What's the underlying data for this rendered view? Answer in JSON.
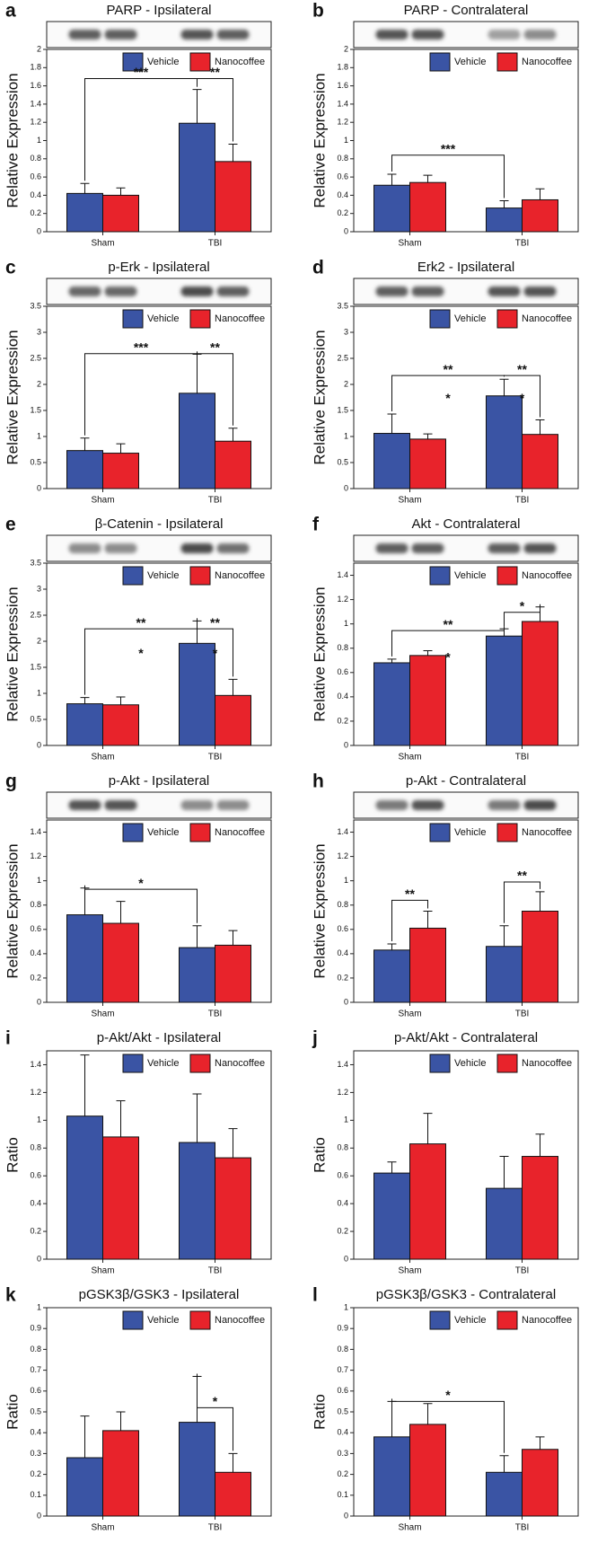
{
  "chart_data": [
    {
      "type": "bar",
      "panel": "a",
      "title": "PARP - Ipsilateral",
      "ylabel": "Relative Expression",
      "categories": [
        "Sham",
        "TBI"
      ],
      "series": [
        {
          "name": "Vehicle",
          "color": "#3a54a4",
          "values": [
            0.42,
            1.19
          ],
          "errors": [
            0.11,
            0.37
          ]
        },
        {
          "name": "Nanocoffee",
          "color": "#e8232b",
          "values": [
            0.4,
            0.77
          ],
          "errors": [
            0.08,
            0.19
          ]
        }
      ],
      "ylim": [
        0,
        2
      ],
      "yticks": [
        0,
        0.2,
        0.4,
        0.6,
        0.8,
        1,
        1.2,
        1.4,
        1.6,
        1.8,
        2
      ],
      "annotations": [
        "***",
        "**"
      ]
    },
    {
      "type": "bar",
      "panel": "b",
      "title": "PARP - Contralateral",
      "ylabel": "Relative Expression",
      "categories": [
        "Sham",
        "TBI"
      ],
      "series": [
        {
          "name": "Vehicle",
          "color": "#3a54a4",
          "values": [
            0.51,
            0.26
          ],
          "errors": [
            0.12,
            0.08
          ]
        },
        {
          "name": "Nanocoffee",
          "color": "#e8232b",
          "values": [
            0.54,
            0.35
          ],
          "errors": [
            0.08,
            0.12
          ]
        }
      ],
      "ylim": [
        0,
        2
      ],
      "yticks": [
        0,
        0.2,
        0.4,
        0.6,
        0.8,
        1,
        1.2,
        1.4,
        1.6,
        1.8,
        2
      ],
      "annotations": [
        "***"
      ]
    },
    {
      "type": "bar",
      "panel": "c",
      "title": "p-Erk - Ipsilateral",
      "ylabel": "Relative Expression",
      "categories": [
        "Sham",
        "TBI"
      ],
      "series": [
        {
          "name": "Vehicle",
          "color": "#3a54a4",
          "values": [
            0.73,
            1.83
          ],
          "errors": [
            0.24,
            0.75
          ]
        },
        {
          "name": "Nanocoffee",
          "color": "#e8232b",
          "values": [
            0.68,
            0.91
          ],
          "errors": [
            0.18,
            0.25
          ]
        }
      ],
      "ylim": [
        0,
        3.5
      ],
      "yticks": [
        0,
        0.5,
        1,
        1.5,
        2,
        2.5,
        3,
        3.5
      ],
      "annotations": [
        "***",
        "**"
      ]
    },
    {
      "type": "bar",
      "panel": "d",
      "title": "Erk2 - Ipsilateral",
      "ylabel": "Relative Expression",
      "categories": [
        "Sham",
        "TBI"
      ],
      "series": [
        {
          "name": "Vehicle",
          "color": "#3a54a4",
          "values": [
            1.06,
            1.78
          ],
          "errors": [
            0.37,
            0.32
          ]
        },
        {
          "name": "Nanocoffee",
          "color": "#e8232b",
          "values": [
            0.95,
            1.04
          ],
          "errors": [
            0.1,
            0.28
          ]
        }
      ],
      "ylim": [
        0,
        3.5
      ],
      "yticks": [
        0,
        0.5,
        1,
        1.5,
        2,
        2.5,
        3,
        3.5
      ],
      "annotations": [
        "**",
        "**",
        "*",
        "*"
      ]
    },
    {
      "type": "bar",
      "panel": "e",
      "title": "β-Catenin - Ipsilateral",
      "ylabel": "Relative Expression",
      "categories": [
        "Sham",
        "TBI"
      ],
      "series": [
        {
          "name": "Vehicle",
          "color": "#3a54a4",
          "values": [
            0.8,
            1.96
          ],
          "errors": [
            0.12,
            0.43
          ]
        },
        {
          "name": "Nanocoffee",
          "color": "#e8232b",
          "values": [
            0.78,
            0.96
          ],
          "errors": [
            0.15,
            0.31
          ]
        }
      ],
      "ylim": [
        0,
        3.5
      ],
      "yticks": [
        0,
        0.5,
        1,
        1.5,
        2,
        2.5,
        3,
        3.5
      ],
      "annotations": [
        "**",
        "**",
        "*",
        "*"
      ]
    },
    {
      "type": "bar",
      "panel": "f",
      "title": "Akt - Contralateral",
      "ylabel": "Relative Expression",
      "categories": [
        "Sham",
        "TBI"
      ],
      "series": [
        {
          "name": "Vehicle",
          "color": "#3a54a4",
          "values": [
            0.68,
            0.9
          ],
          "errors": [
            0.03,
            0.06
          ]
        },
        {
          "name": "Nanocoffee",
          "color": "#e8232b",
          "values": [
            0.74,
            1.02
          ],
          "errors": [
            0.04,
            0.12
          ]
        }
      ],
      "ylim": [
        0,
        1.5
      ],
      "yticks": [
        0,
        0.2,
        0.4,
        0.6,
        0.8,
        1,
        1.2,
        1.4
      ],
      "annotations": [
        "**",
        "*",
        "*"
      ]
    },
    {
      "type": "bar",
      "panel": "g",
      "title": "p-Akt - Ipsilateral",
      "ylabel": "Relative Expression",
      "categories": [
        "Sham",
        "TBI"
      ],
      "series": [
        {
          "name": "Vehicle",
          "color": "#3a54a4",
          "values": [
            0.72,
            0.45
          ],
          "errors": [
            0.22,
            0.18
          ]
        },
        {
          "name": "Nanocoffee",
          "color": "#e8232b",
          "values": [
            0.65,
            0.47
          ],
          "errors": [
            0.18,
            0.12
          ]
        }
      ],
      "ylim": [
        0,
        1.5
      ],
      "yticks": [
        0,
        0.2,
        0.4,
        0.6,
        0.8,
        1,
        1.2,
        1.4
      ],
      "annotations": [
        "*"
      ]
    },
    {
      "type": "bar",
      "panel": "h",
      "title": "p-Akt - Contralateral",
      "ylabel": "Relative Expression",
      "categories": [
        "Sham",
        "TBI"
      ],
      "series": [
        {
          "name": "Vehicle",
          "color": "#3a54a4",
          "values": [
            0.43,
            0.46
          ],
          "errors": [
            0.05,
            0.17
          ]
        },
        {
          "name": "Nanocoffee",
          "color": "#e8232b",
          "values": [
            0.61,
            0.75
          ],
          "errors": [
            0.14,
            0.16
          ]
        }
      ],
      "ylim": [
        0,
        1.5
      ],
      "yticks": [
        0,
        0.2,
        0.4,
        0.6,
        0.8,
        1,
        1.2,
        1.4
      ],
      "annotations": [
        "**",
        "**"
      ]
    },
    {
      "type": "bar",
      "panel": "i",
      "title": "p-Akt/Akt - Ipsilateral",
      "ylabel": "Ratio",
      "categories": [
        "Sham",
        "TBI"
      ],
      "series": [
        {
          "name": "Vehicle",
          "color": "#3a54a4",
          "values": [
            1.03,
            0.84
          ],
          "errors": [
            0.44,
            0.35
          ]
        },
        {
          "name": "Nanocoffee",
          "color": "#e8232b",
          "values": [
            0.88,
            0.73
          ],
          "errors": [
            0.26,
            0.21
          ]
        }
      ],
      "ylim": [
        0,
        1.5
      ],
      "yticks": [
        0,
        0.2,
        0.4,
        0.6,
        0.8,
        1,
        1.2,
        1.4
      ],
      "annotations": []
    },
    {
      "type": "bar",
      "panel": "j",
      "title": "p-Akt/Akt - Contralateral",
      "ylabel": "Ratio",
      "categories": [
        "Sham",
        "TBI"
      ],
      "series": [
        {
          "name": "Vehicle",
          "color": "#3a54a4",
          "values": [
            0.62,
            0.51
          ],
          "errors": [
            0.08,
            0.23
          ]
        },
        {
          "name": "Nanocoffee",
          "color": "#e8232b",
          "values": [
            0.83,
            0.74
          ],
          "errors": [
            0.22,
            0.16
          ]
        }
      ],
      "ylim": [
        0,
        1.5
      ],
      "yticks": [
        0,
        0.2,
        0.4,
        0.6,
        0.8,
        1,
        1.2,
        1.4
      ],
      "annotations": []
    },
    {
      "type": "bar",
      "panel": "k",
      "title": "pGSK3β/GSK3 - Ipsilateral",
      "ylabel": "Ratio",
      "categories": [
        "Sham",
        "TBI"
      ],
      "series": [
        {
          "name": "Vehicle",
          "color": "#3a54a4",
          "values": [
            0.28,
            0.45
          ],
          "errors": [
            0.2,
            0.22
          ]
        },
        {
          "name": "Nanocoffee",
          "color": "#e8232b",
          "values": [
            0.41,
            0.21
          ],
          "errors": [
            0.09,
            0.09
          ]
        }
      ],
      "ylim": [
        0,
        1
      ],
      "yticks": [
        0,
        0.1,
        0.2,
        0.3,
        0.4,
        0.5,
        0.6,
        0.7,
        0.8,
        0.9,
        1
      ],
      "annotations": [
        "*"
      ]
    },
    {
      "type": "bar",
      "panel": "l",
      "title": "pGSK3β/GSK3 - Contralateral",
      "ylabel": "Ratio",
      "categories": [
        "Sham",
        "TBI"
      ],
      "series": [
        {
          "name": "Vehicle",
          "color": "#3a54a4",
          "values": [
            0.38,
            0.21
          ],
          "errors": [
            0.17,
            0.08
          ]
        },
        {
          "name": "Nanocoffee",
          "color": "#e8232b",
          "values": [
            0.44,
            0.32
          ],
          "errors": [
            0.1,
            0.06
          ]
        }
      ],
      "ylim": [
        0,
        1
      ],
      "yticks": [
        0,
        0.1,
        0.2,
        0.3,
        0.4,
        0.5,
        0.6,
        0.7,
        0.8,
        0.9,
        1
      ],
      "annotations": [
        "*"
      ]
    }
  ]
}
